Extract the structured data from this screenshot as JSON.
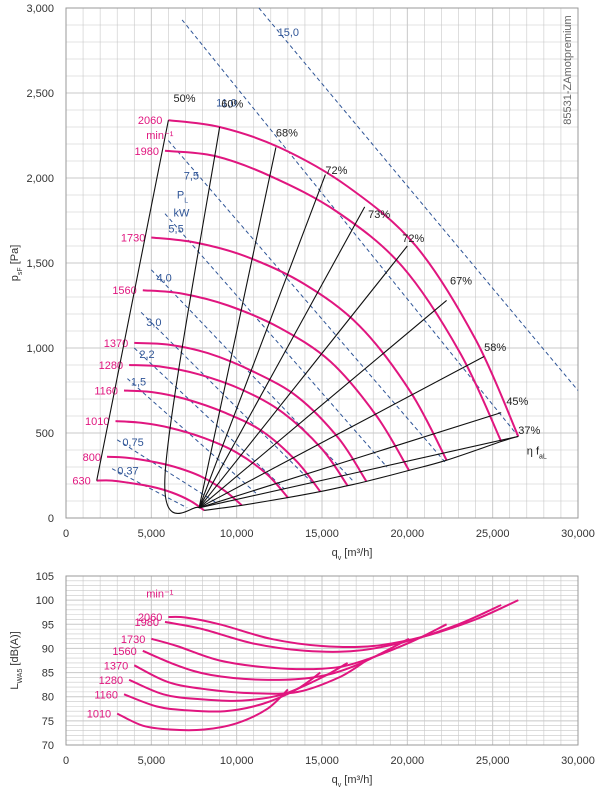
{
  "code_label": "85531-ZAmotpremium",
  "colors": {
    "speed": "#e0167f",
    "power": "#2f5597",
    "efficiency": "#111111",
    "grid": "#c8c8c8"
  },
  "chart_data": [
    {
      "type": "line",
      "xlabel": "q",
      "xlabel_sub": "v",
      "xlabel_unit": "[m³/h]",
      "ylabel": "p",
      "ylabel_sub": "sF",
      "ylabel_unit": "[Pa]",
      "xlim": [
        0,
        30000
      ],
      "ylim": [
        0,
        3000
      ],
      "xticks": [
        0,
        5000,
        10000,
        15000,
        20000,
        25000,
        30000
      ],
      "xtick_labels": [
        "0",
        "5,000",
        "10,000",
        "15,000",
        "20,000",
        "25,000",
        "30,000"
      ],
      "yticks": [
        0,
        500,
        1000,
        1500,
        2000,
        2500,
        3000
      ],
      "ytick_labels": [
        "0",
        "500",
        "1,000",
        "1,500",
        "2,000",
        "2,500",
        "3,000"
      ],
      "grid": true,
      "speed_unit": "min⁻¹",
      "power_label": "P",
      "power_label_sub": "L",
      "power_unit": "kW",
      "efficiency_symbol": "η f",
      "efficiency_symbol_sub": "aL",
      "speed_curves": [
        {
          "name": "2060",
          "points": [
            [
              6000,
              2340
            ],
            [
              9000,
              2300
            ],
            [
              12500,
              2180
            ],
            [
              16500,
              1950
            ],
            [
              20500,
              1600
            ],
            [
              24000,
              1050
            ],
            [
              26500,
              480
            ]
          ]
        },
        {
          "name": "1980",
          "points": [
            [
              5800,
              2160
            ],
            [
              8700,
              2130
            ],
            [
              12000,
              2010
            ],
            [
              15900,
              1800
            ],
            [
              19700,
              1480
            ],
            [
              23100,
              970
            ],
            [
              25500,
              450
            ]
          ]
        },
        {
          "name": "1730",
          "points": [
            [
              5000,
              1650
            ],
            [
              7600,
              1620
            ],
            [
              10500,
              1540
            ],
            [
              13900,
              1380
            ],
            [
              17200,
              1130
            ],
            [
              20200,
              740
            ],
            [
              22300,
              340
            ]
          ]
        },
        {
          "name": "1560",
          "points": [
            [
              4500,
              1340
            ],
            [
              6800,
              1320
            ],
            [
              9500,
              1250
            ],
            [
              12500,
              1120
            ],
            [
              15500,
              920
            ],
            [
              18200,
              600
            ],
            [
              20100,
              280
            ]
          ]
        },
        {
          "name": "1370",
          "points": [
            [
              4000,
              1030
            ],
            [
              6000,
              1020
            ],
            [
              8300,
              970
            ],
            [
              11000,
              860
            ],
            [
              13600,
              710
            ],
            [
              16000,
              465
            ],
            [
              17600,
              215
            ]
          ]
        },
        {
          "name": "1280",
          "points": [
            [
              3700,
              900
            ],
            [
              5600,
              890
            ],
            [
              7800,
              845
            ],
            [
              10300,
              755
            ],
            [
              12700,
              620
            ],
            [
              15000,
              405
            ],
            [
              16500,
              190
            ]
          ]
        },
        {
          "name": "1160",
          "points": [
            [
              3400,
              750
            ],
            [
              5100,
              740
            ],
            [
              7000,
              700
            ],
            [
              9300,
              620
            ],
            [
              11500,
              510
            ],
            [
              13500,
              335
            ],
            [
              14900,
              155
            ]
          ]
        },
        {
          "name": "1010",
          "points": [
            [
              2900,
              570
            ],
            [
              4400,
              560
            ],
            [
              6100,
              530
            ],
            [
              8100,
              470
            ],
            [
              10000,
              385
            ],
            [
              11800,
              255
            ],
            [
              13000,
              120
            ]
          ]
        },
        {
          "name": "800",
          "points": [
            [
              2400,
              360
            ],
            [
              3500,
              355
            ],
            [
              4900,
              335
            ],
            [
              6400,
              300
            ],
            [
              7900,
              245
            ],
            [
              9300,
              160
            ],
            [
              10300,
              75
            ]
          ]
        },
        {
          "name": "630",
          "points": [
            [
              1800,
              220
            ],
            [
              2700,
              220
            ],
            [
              3800,
              205
            ],
            [
              5000,
              185
            ],
            [
              6200,
              150
            ],
            [
              7300,
              100
            ],
            [
              8100,
              45
            ]
          ]
        }
      ],
      "power_lines": [
        {
          "name": "15,0",
          "label_at": [
            12400,
            2835
          ],
          "points": [
            [
              11300,
              3000
            ],
            [
              30000,
              750
            ]
          ]
        },
        {
          "name": "11,0",
          "label_at": [
            8800,
            2420
          ],
          "points": [
            [
              6800,
              2930
            ],
            [
              26500,
              480
            ]
          ]
        },
        {
          "name": "7,5",
          "label_at": [
            6900,
            1990
          ],
          "points": [
            [
              6000,
              2220
            ],
            [
              22200,
              330
            ]
          ]
        },
        {
          "name": "5,5",
          "label_at": [
            6000,
            1680
          ],
          "points": [
            [
              5800,
              1790
            ],
            [
              18800,
              300
            ]
          ]
        },
        {
          "name": "4,0",
          "label_at": [
            5300,
            1390
          ],
          "points": [
            [
              5000,
              1460
            ],
            [
              16800,
              220
            ]
          ]
        },
        {
          "name": "3,0",
          "label_at": [
            4700,
            1130
          ],
          "points": [
            [
              4400,
              1210
            ],
            [
              14500,
              200
            ]
          ]
        },
        {
          "name": "2,2",
          "label_at": [
            4300,
            940
          ],
          "points": [
            [
              4000,
              1000
            ],
            [
              12800,
              170
            ]
          ]
        },
        {
          "name": "1,5",
          "label_at": [
            3800,
            780
          ],
          "points": [
            [
              3600,
              820
            ],
            [
              11200,
              140
            ]
          ]
        },
        {
          "name": "0,75",
          "label_at": [
            3300,
            425
          ],
          "points": [
            [
              3000,
              460
            ],
            [
              8800,
              90
            ]
          ]
        },
        {
          "name": "0,37",
          "label_at": [
            3000,
            255
          ],
          "points": [
            [
              2700,
              290
            ],
            [
              7100,
              60
            ]
          ]
        }
      ],
      "efficiency_lines": [
        {
          "name": "50%",
          "label_at": [
            6300,
            2425
          ],
          "points": [
            [
              6000,
              2340
            ],
            [
              1800,
              220
            ]
          ]
        },
        {
          "name": "60%",
          "label_at": [
            9100,
            2390
          ],
          "points": [
            [
              9000,
              2300
            ],
            [
              5800,
              250
            ],
            [
              7800,
              60
            ]
          ]
        },
        {
          "name": "68%",
          "label_at": [
            12300,
            2220
          ],
          "points": [
            [
              12300,
              2180
            ],
            [
              7800,
              60
            ]
          ]
        },
        {
          "name": "72%",
          "label_at": [
            15200,
            2000
          ],
          "points": [
            [
              15200,
              2020
            ],
            [
              7800,
              60
            ]
          ]
        },
        {
          "name": "73%",
          "label_at": [
            17700,
            1740
          ],
          "points": [
            [
              17500,
              1830
            ],
            [
              7800,
              60
            ]
          ]
        },
        {
          "name": "72%",
          "label_at": [
            19700,
            1600
          ],
          "points": [
            [
              20000,
              1600
            ],
            [
              7800,
              60
            ]
          ]
        },
        {
          "name": "67%",
          "label_at": [
            22500,
            1350
          ],
          "points": [
            [
              22300,
              1280
            ],
            [
              7800,
              60
            ]
          ]
        },
        {
          "name": "58%",
          "label_at": [
            24500,
            960
          ],
          "points": [
            [
              24500,
              950
            ],
            [
              7800,
              60
            ]
          ]
        },
        {
          "name": "45%",
          "label_at": [
            25800,
            640
          ],
          "points": [
            [
              25500,
              620
            ],
            [
              7800,
              60
            ]
          ]
        },
        {
          "name": "37%",
          "label_at": [
            26500,
            470
          ],
          "points": [
            [
              26500,
              480
            ],
            [
              7800,
              60
            ]
          ]
        }
      ]
    },
    {
      "type": "line",
      "xlabel": "q",
      "xlabel_sub": "v",
      "xlabel_unit": "[m³/h]",
      "ylabel": "L",
      "ylabel_sub": "WA5",
      "ylabel_unit": "[dB(A)]",
      "xlim": [
        0,
        30000
      ],
      "ylim": [
        70,
        105
      ],
      "xticks": [
        0,
        5000,
        10000,
        15000,
        20000,
        25000,
        30000
      ],
      "xtick_labels": [
        "0",
        "5,000",
        "10,000",
        "15,000",
        "20,000",
        "25,000",
        "30,000"
      ],
      "yticks": [
        70,
        75,
        80,
        85,
        90,
        95,
        100,
        105
      ],
      "ytick_labels": [
        "70",
        "75",
        "80",
        "85",
        "90",
        "95",
        "100",
        "105"
      ],
      "grid": true,
      "speed_unit": "min⁻¹",
      "series": [
        {
          "name": "2060",
          "points": [
            [
              6000,
              96.5
            ],
            [
              7000,
              96.4
            ],
            [
              9000,
              95
            ],
            [
              12000,
              92
            ],
            [
              15000,
              90.5
            ],
            [
              18000,
              90.5
            ],
            [
              21000,
              92.5
            ],
            [
              24000,
              96
            ],
            [
              26500,
              100
            ]
          ]
        },
        {
          "name": "1980",
          "points": [
            [
              5800,
              95.5
            ],
            [
              8000,
              94
            ],
            [
              11000,
              91
            ],
            [
              14000,
              89.5
            ],
            [
              17000,
              89.5
            ],
            [
              20000,
              91.5
            ],
            [
              23000,
              95
            ],
            [
              25500,
              99
            ]
          ]
        },
        {
          "name": "1730",
          "points": [
            [
              5000,
              92
            ],
            [
              6500,
              90.5
            ],
            [
              9000,
              87.5
            ],
            [
              12000,
              86
            ],
            [
              15000,
              85.8
            ],
            [
              17000,
              87
            ],
            [
              20000,
              91
            ],
            [
              22300,
              95
            ]
          ]
        },
        {
          "name": "1560",
          "points": [
            [
              4500,
              89.5
            ],
            [
              6500,
              86.5
            ],
            [
              8500,
              84.5
            ],
            [
              11500,
              83.5
            ],
            [
              14500,
              84
            ],
            [
              17000,
              86.5
            ],
            [
              20100,
              92
            ]
          ]
        },
        {
          "name": "1370",
          "points": [
            [
              4000,
              86.5
            ],
            [
              6000,
              83
            ],
            [
              8300,
              81.5
            ],
            [
              11000,
              80.7
            ],
            [
              13600,
              81
            ],
            [
              16000,
              84
            ],
            [
              17600,
              87.5
            ]
          ]
        },
        {
          "name": "1280",
          "points": [
            [
              3700,
              83.5
            ],
            [
              5700,
              80.5
            ],
            [
              7800,
              79.5
            ],
            [
              10300,
              79.2
            ],
            [
              12700,
              80.5
            ],
            [
              15000,
              84
            ],
            [
              16500,
              87
            ]
          ]
        },
        {
          "name": "1160",
          "points": [
            [
              3400,
              80.5
            ],
            [
              5300,
              78
            ],
            [
              7000,
              77.2
            ],
            [
              9300,
              77
            ],
            [
              11500,
              78.5
            ],
            [
              13500,
              81.5
            ],
            [
              14900,
              85
            ]
          ]
        },
        {
          "name": "1010",
          "points": [
            [
              3000,
              76.5
            ],
            [
              4500,
              74
            ],
            [
              6100,
              73.2
            ],
            [
              8100,
              73.2
            ],
            [
              10000,
              74.5
            ],
            [
              11800,
              77.5
            ],
            [
              13000,
              81.5
            ]
          ]
        }
      ]
    }
  ]
}
